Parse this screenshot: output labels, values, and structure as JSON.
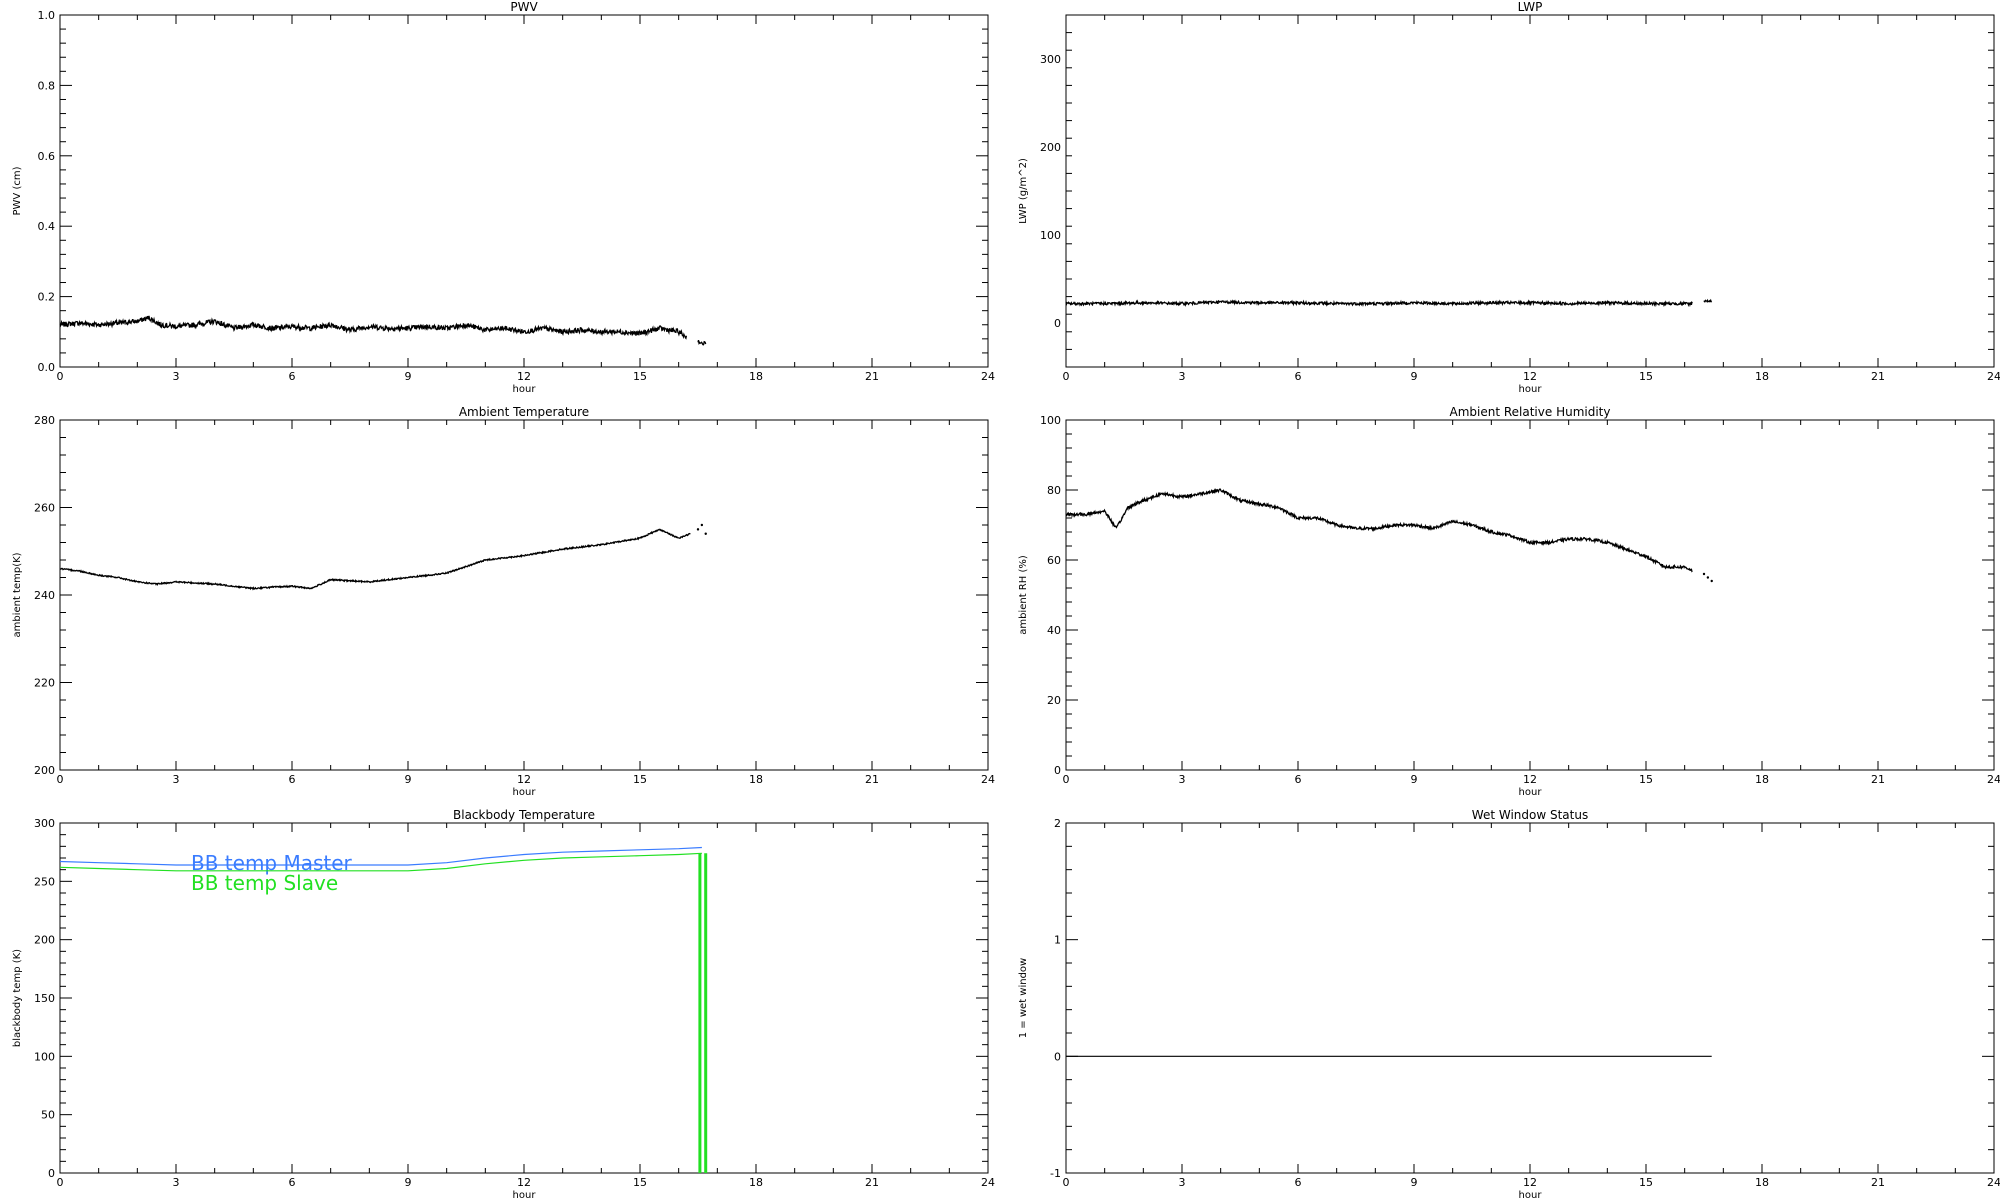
{
  "chart_data": [
    {
      "id": "pwv",
      "type": "line",
      "title": "PWV",
      "xlabel": "hour",
      "ylabel": "PWV (cm)",
      "xlim": [
        0,
        24
      ],
      "ylim": [
        0.0,
        1.0
      ],
      "xticks": [
        0,
        3,
        6,
        9,
        12,
        15,
        18,
        21,
        24
      ],
      "yticks": [
        0.0,
        0.2,
        0.4,
        0.6,
        0.8,
        1.0
      ],
      "ytick_decimals": 1,
      "series": [
        {
          "color": "#000000",
          "style": "noisy",
          "noise": 0.007,
          "x": [
            0,
            0.5,
            1,
            1.5,
            2,
            2.3,
            2.6,
            3,
            3.5,
            4,
            4.5,
            5,
            5.5,
            6,
            6.5,
            7,
            7.5,
            8,
            8.5,
            9,
            9.5,
            10,
            10.5,
            11,
            11.5,
            12,
            12.5,
            13,
            13.5,
            14,
            14.5,
            15,
            15.5,
            16,
            16.2
          ],
          "y": [
            0.12,
            0.125,
            0.12,
            0.125,
            0.13,
            0.14,
            0.12,
            0.115,
            0.12,
            0.13,
            0.11,
            0.12,
            0.11,
            0.115,
            0.11,
            0.12,
            0.105,
            0.115,
            0.11,
            0.11,
            0.115,
            0.11,
            0.12,
            0.105,
            0.11,
            0.1,
            0.11,
            0.1,
            0.105,
            0.1,
            0.1,
            0.095,
            0.11,
            0.1,
            0.085
          ]
        },
        {
          "color": "#000000",
          "style": "noisy",
          "noise": 0.005,
          "x": [
            16.5,
            16.6,
            16.7
          ],
          "y": [
            0.075,
            0.065,
            0.07
          ]
        }
      ]
    },
    {
      "id": "lwp",
      "type": "line",
      "title": "LWP",
      "xlabel": "hour",
      "ylabel": "LWP (g/m^2)",
      "xlim": [
        0,
        24
      ],
      "ylim": [
        -50,
        350
      ],
      "xticks": [
        0,
        3,
        6,
        9,
        12,
        15,
        18,
        21,
        24
      ],
      "yticks": [
        0,
        100,
        200,
        300
      ],
      "ytick_decimals": 0,
      "series": [
        {
          "color": "#000000",
          "style": "noisy",
          "noise": 1.5,
          "x": [
            0,
            1,
            2,
            3,
            4,
            5,
            6,
            7,
            8,
            9,
            10,
            11,
            12,
            13,
            14,
            15,
            16,
            16.2
          ],
          "y": [
            22,
            22,
            23,
            22,
            24,
            23,
            23,
            22,
            22,
            23,
            22,
            23,
            23,
            22,
            23,
            22,
            22,
            22
          ]
        },
        {
          "color": "#000000",
          "style": "noisy",
          "noise": 1.0,
          "x": [
            16.5,
            16.6,
            16.7
          ],
          "y": [
            25,
            25,
            25
          ]
        }
      ]
    },
    {
      "id": "temp",
      "type": "line",
      "title": "Ambient Temperature",
      "xlabel": "hour",
      "ylabel": "ambient temp(K)",
      "xlim": [
        0,
        24
      ],
      "ylim": [
        200,
        280
      ],
      "xticks": [
        0,
        3,
        6,
        9,
        12,
        15,
        18,
        21,
        24
      ],
      "yticks": [
        200,
        220,
        240,
        260,
        280
      ],
      "ytick_decimals": 0,
      "series": [
        {
          "color": "#000000",
          "style": "noisy",
          "noise": 0.15,
          "x": [
            0,
            0.5,
            1,
            1.5,
            2,
            2.5,
            3,
            4,
            5,
            5.5,
            6,
            6.5,
            7,
            8,
            9,
            10,
            10.5,
            11,
            12,
            13,
            14,
            15,
            15.5,
            16,
            16.3
          ],
          "y": [
            246,
            245.5,
            244.5,
            244,
            243,
            242.5,
            243,
            242.5,
            241.5,
            241.8,
            242,
            241.5,
            243.5,
            243,
            244,
            245,
            246.5,
            248,
            249,
            250.5,
            251.5,
            253,
            255,
            253,
            254
          ]
        },
        {
          "color": "#000000",
          "style": "dots",
          "x": [
            16.5,
            16.6,
            16.7
          ],
          "y": [
            255,
            256,
            254
          ]
        }
      ]
    },
    {
      "id": "rh",
      "type": "line",
      "title": "Ambient Relative Humidity",
      "xlabel": "hour",
      "ylabel": "ambient RH (%)",
      "xlim": [
        0,
        24
      ],
      "ylim": [
        0,
        100
      ],
      "xticks": [
        0,
        3,
        6,
        9,
        12,
        15,
        18,
        21,
        24
      ],
      "yticks": [
        0,
        20,
        40,
        60,
        80,
        100
      ],
      "ytick_decimals": 0,
      "series": [
        {
          "color": "#000000",
          "style": "noisy",
          "noise": 0.4,
          "x": [
            0,
            0.5,
            1,
            1.3,
            1.6,
            2,
            2.5,
            3,
            3.5,
            4,
            4.5,
            5,
            5.5,
            6,
            6.5,
            7,
            7.5,
            8,
            8.5,
            9,
            9.5,
            10,
            10.5,
            11,
            11.5,
            12,
            12.5,
            13,
            13.5,
            14,
            14.5,
            15,
            15.5,
            16,
            16.2
          ],
          "y": [
            73,
            73,
            74,
            69,
            75,
            77,
            79,
            78,
            79,
            80,
            77,
            76,
            75,
            72,
            72,
            70,
            69,
            69,
            70,
            70,
            69,
            71,
            70,
            68,
            67,
            65,
            65,
            66,
            66,
            65,
            63,
            61,
            58,
            58,
            57
          ]
        },
        {
          "color": "#000000",
          "style": "dots",
          "x": [
            16.5,
            16.6,
            16.7
          ],
          "y": [
            56,
            55,
            54
          ]
        }
      ]
    },
    {
      "id": "bb",
      "type": "line",
      "title": "Blackbody Temperature",
      "xlabel": "hour",
      "ylabel": "blackbody temp (K)",
      "xlim": [
        0,
        24
      ],
      "ylim": [
        0,
        300
      ],
      "xticks": [
        0,
        3,
        6,
        9,
        12,
        15,
        18,
        21,
        24
      ],
      "yticks": [
        0,
        50,
        100,
        150,
        200,
        250,
        300
      ],
      "ytick_decimals": 0,
      "legend": [
        {
          "label": "BB temp Master",
          "color": "#3a7cff"
        },
        {
          "label": "BB temp Slave",
          "color": "#22e022"
        }
      ],
      "series": [
        {
          "name": "BB temp Master",
          "color": "#3a7cff",
          "style": "line",
          "x": [
            0,
            1,
            2,
            3,
            4,
            5,
            6,
            7,
            8,
            9,
            10,
            11,
            12,
            13,
            14,
            15,
            16,
            16.6
          ],
          "y": [
            267,
            266,
            265,
            264,
            264,
            264,
            264,
            264,
            264,
            264,
            266,
            270,
            273,
            275,
            276,
            277,
            278,
            279
          ]
        },
        {
          "name": "BB temp Slave",
          "color": "#22e022",
          "style": "line",
          "x": [
            0,
            1,
            2,
            3,
            4,
            5,
            6,
            7,
            8,
            9,
            10,
            11,
            12,
            13,
            14,
            15,
            16,
            16.6
          ],
          "y": [
            262,
            261,
            260,
            259,
            259,
            259,
            259,
            259,
            259,
            259,
            261,
            265,
            268,
            270,
            271,
            272,
            273,
            274
          ]
        },
        {
          "color": "#22e022",
          "style": "drop",
          "width": 3,
          "x": [
            16.55,
            16.55
          ],
          "y": [
            274,
            0
          ]
        },
        {
          "color": "#22e022",
          "style": "drop",
          "width": 3,
          "x": [
            16.7,
            16.7
          ],
          "y": [
            274,
            0
          ]
        }
      ]
    },
    {
      "id": "wet",
      "type": "line",
      "title": "Wet Window Status",
      "xlabel": "hour",
      "ylabel": "1 = wet window",
      "xlim": [
        0,
        24
      ],
      "ylim": [
        -1,
        2
      ],
      "xticks": [
        0,
        3,
        6,
        9,
        12,
        15,
        18,
        21,
        24
      ],
      "yticks": [
        -1,
        0,
        1,
        2
      ],
      "ytick_decimals": 0,
      "series": [
        {
          "color": "#000000",
          "style": "line",
          "x": [
            0,
            16.7
          ],
          "y": [
            0,
            0
          ]
        }
      ]
    }
  ]
}
